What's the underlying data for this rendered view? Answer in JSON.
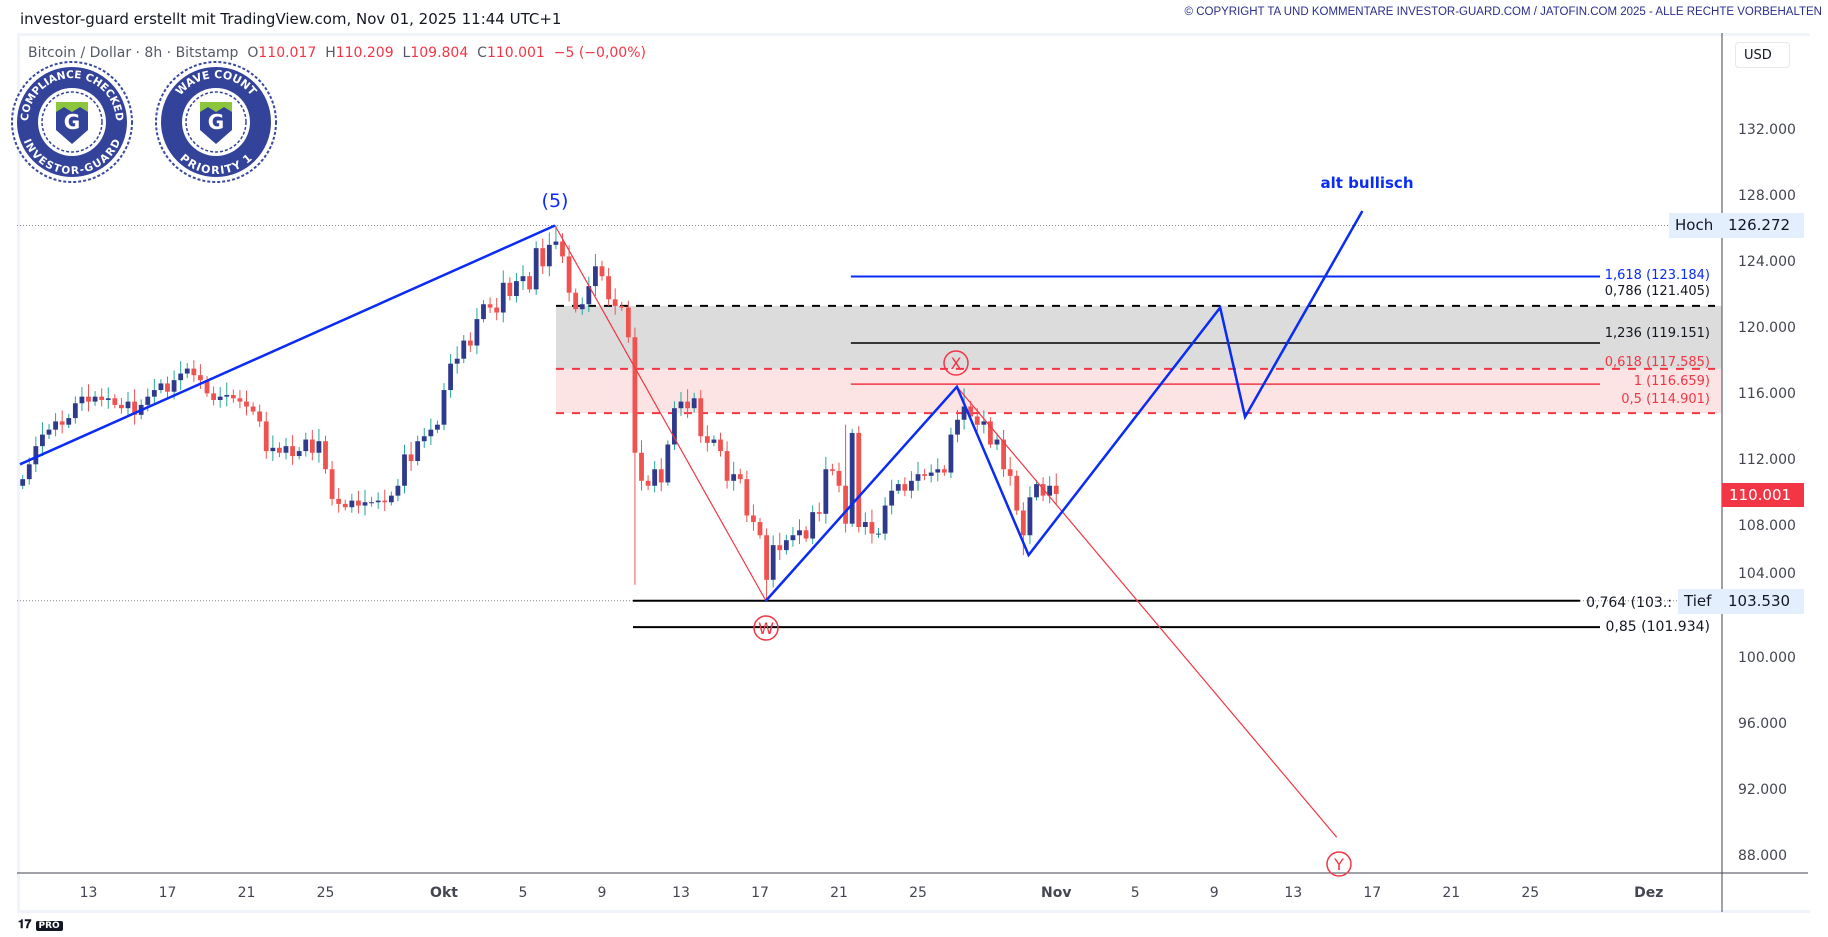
{
  "header": {
    "credit": "investor-guard erstellt mit TradingView.com, Nov 01, 2025 11:44 UTC+1",
    "copyright": "© COPYRIGHT TA UND KOMMENTARE INVESTOR-GUARD.COM / JATOFIN.COM 2025 - ALLE RECHTE VORBEHALTEN"
  },
  "legend": {
    "symbol": "Bitcoin / Dollar · 8h · Bitstamp",
    "o_label": "O",
    "o": "110.017",
    "h_label": "H",
    "h": "110.209",
    "l_label": "L",
    "l": "109.804",
    "c_label": "C",
    "c": "110.001",
    "change": "−5 (−0,00%)"
  },
  "badges": [
    {
      "top": "COMPLIANCE CHECKED",
      "bottom": "INVESTOR-GUARD",
      "letter": "G"
    },
    {
      "top": "WAVE COUNT",
      "bottom": "PRIORITY 1",
      "letter": "G"
    }
  ],
  "currency": "USD",
  "price_axis": [
    132,
    128,
    124,
    120,
    116,
    112,
    108,
    104,
    100,
    96,
    92,
    88
  ],
  "price_axis_labels": [
    "132.000",
    "128.000",
    "124.000",
    "120.000",
    "116.000",
    "112.000",
    "108.000",
    "104.000",
    "100.000",
    "96.000",
    "92.000",
    "88.000"
  ],
  "time_axis": [
    {
      "label": "13",
      "day": -18
    },
    {
      "label": "17",
      "day": -14
    },
    {
      "label": "21",
      "day": -10
    },
    {
      "label": "25",
      "day": -6
    },
    {
      "label": "Okt",
      "day": 0
    },
    {
      "label": "5",
      "day": 4
    },
    {
      "label": "9",
      "day": 8
    },
    {
      "label": "13",
      "day": 12
    },
    {
      "label": "17",
      "day": 16
    },
    {
      "label": "21",
      "day": 20
    },
    {
      "label": "25",
      "day": 24
    },
    {
      "label": "Nov",
      "day": 31
    },
    {
      "label": "5",
      "day": 35
    },
    {
      "label": "9",
      "day": 39
    },
    {
      "label": "13",
      "day": 43
    },
    {
      "label": "17",
      "day": 47
    },
    {
      "label": "21",
      "day": 51
    },
    {
      "label": "25",
      "day": 55
    },
    {
      "label": "Dez",
      "day": 61
    }
  ],
  "hoch": {
    "label": "Hoch",
    "value": "126.272",
    "price": 126.272
  },
  "tief": {
    "label": "Tief",
    "value": "103.530",
    "price": 103.53
  },
  "last_price": {
    "value": "110.001",
    "price": 110.001
  },
  "fib_labels": {
    "f1618": "1,618 (123.184)",
    "f0786": "0,786 (121.405)",
    "f1236": "1,236 (119.151)",
    "f0618": "0,618 (117.585)",
    "f1": "1 (116.659)",
    "f05": "0,5 (114.901)",
    "f0764": "0,764 (103.:",
    "f085": "0,85 (101.934)"
  },
  "wave_labels": {
    "five": "(5)",
    "w": "W",
    "x": "X",
    "y": "Y",
    "alt": "alt bullisch"
  },
  "colors": {
    "up": "#2e3a8c",
    "upwick": "#26a69a",
    "down": "#ef5350",
    "blue": "#0a2cf5",
    "red": "#f23645"
  },
  "candles": {
    "start_day": -21.333,
    "closes": [
      110.9,
      111.8,
      112.9,
      113.6,
      113.9,
      114.4,
      114.2,
      114.6,
      115.5,
      115.9,
      115.6,
      115.9,
      115.7,
      115.8,
      115.4,
      115.2,
      115.6,
      114.8,
      115.4,
      115.9,
      116.3,
      116.7,
      116.2,
      116.9,
      117.3,
      117.6,
      117.2,
      116.9,
      116.1,
      115.7,
      115.9,
      116.0,
      115.8,
      115.6,
      115.3,
      115.0,
      114.4,
      112.6,
      112.8,
      112.5,
      112.9,
      112.3,
      112.6,
      113.3,
      112.5,
      113.2,
      111.5,
      109.7,
      109.4,
      109.2,
      109.6,
      109.3,
      109.5,
      109.5,
      109.6,
      109.5,
      109.9,
      110.5,
      112.4,
      112.0,
      113.2,
      113.5,
      113.9,
      114.2,
      116.3,
      117.9,
      118.2,
      119.3,
      119.0,
      120.6,
      121.5,
      121.3,
      121.0,
      122.8,
      122.0,
      122.9,
      123.2,
      122.4,
      124.9,
      123.8,
      125.1,
      125.3,
      124.4,
      122.2,
      121.2,
      121.5,
      122.6,
      123.8,
      123.2,
      121.8,
      121.4,
      121.3,
      119.5,
      112.5,
      110.8,
      110.5,
      111.5,
      110.7,
      113.0,
      115.2,
      115.6,
      115.2,
      115.8,
      113.5,
      113.1,
      113.3,
      112.6,
      110.8,
      111.2,
      110.9,
      108.7,
      108.3,
      107.5,
      104.8,
      106.9,
      106.6,
      107.2,
      107.5,
      107.8,
      107.3,
      108.9,
      108.8,
      111.5,
      111.4,
      110.5,
      108.2,
      113.7,
      108.0,
      108.3,
      107.6,
      107.6,
      109.3,
      110.2,
      110.6,
      110.2,
      110.8,
      111.2,
      111.1,
      111.3,
      111.5,
      111.3,
      113.6,
      114.5,
      115.3,
      114.7,
      114.2,
      114.4,
      113.0,
      113.3,
      111.5,
      111.1,
      109.0,
      107.5,
      109.8,
      110.6,
      109.9,
      110.5,
      110.001
    ],
    "extremes": {
      "81": [
        126.272,
        null
      ],
      "93": [
        null,
        104.5
      ],
      "113": [
        null,
        103.53
      ],
      "143": [
        116.4,
        null
      ],
      "152": [
        null,
        106.3
      ],
      "125": [
        114.2,
        null
      ]
    }
  },
  "drawings": {
    "blue_impulse": [
      [
        -21.47,
        111.8
      ],
      [
        5.62,
        126.272
      ]
    ],
    "red_wy": [
      [
        5.62,
        126.272
      ],
      [
        16.3,
        103.53
      ]
    ],
    "red_xy": [
      [
        25.97,
        116.5
      ],
      [
        45.2,
        89.2
      ]
    ],
    "blue_wx": [
      [
        16.3,
        103.53
      ],
      [
        25.97,
        116.5
      ],
      [
        29.6,
        106.3
      ],
      [
        39.3,
        121.3
      ],
      [
        40.56,
        114.67
      ],
      [
        46.5,
        127.15
      ]
    ],
    "zone_start_day": 5.67,
    "fib_start_day": 20.6,
    "low_fib_start_day": 9.57,
    "fib_prices": {
      "f1618": 123.184,
      "f0786": 121.405,
      "f1236": 119.151,
      "f0618": 117.585,
      "f1": 116.659,
      "f05": 114.901,
      "f0764": 103.53,
      "f085": 101.934
    }
  }
}
